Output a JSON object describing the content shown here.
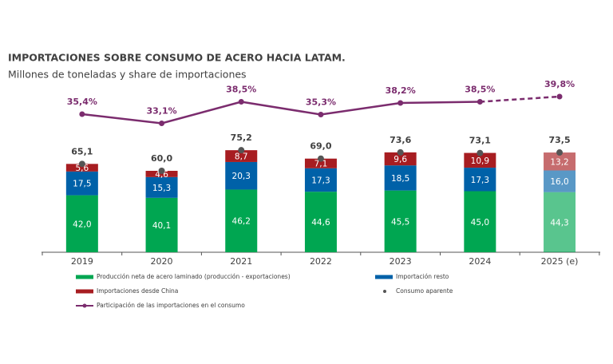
{
  "chart_data": {
    "type": "bar",
    "title": "IMPORTACIONES SOBRE CONSUMO DE ACERO HACIA LATAM.",
    "subtitle": "Millones de toneladas y share de importaciones",
    "categories": [
      "2019",
      "2020",
      "2021",
      "2022",
      "2023",
      "2024",
      "2025 (e)"
    ],
    "series": [
      {
        "name": "Producción neta de acero laminado (producción - exportaciones)",
        "color": "#00a651",
        "values": [
          42.0,
          40.1,
          46.2,
          44.6,
          45.5,
          45.0,
          44.3
        ],
        "value_labels": [
          "42,0",
          "40,1",
          "46,2",
          "44,6",
          "45,5",
          "45,0",
          "44,3"
        ]
      },
      {
        "name": "Importación resto",
        "color": "#0061a8",
        "values": [
          17.5,
          15.3,
          20.3,
          17.3,
          18.5,
          17.3,
          16.0
        ],
        "value_labels": [
          "17,5",
          "15,3",
          "20,3",
          "17,3",
          "18,5",
          "17,3",
          "16,0"
        ]
      },
      {
        "name": "Importaciones desde China",
        "color": "#a71d21",
        "values": [
          5.6,
          4.6,
          8.7,
          7.1,
          9.6,
          10.9,
          13.2
        ],
        "value_labels": [
          "5,6",
          "4,6",
          "8,7",
          "7,1",
          "9,6",
          "10,9",
          "13,2"
        ]
      },
      {
        "name": "Consumo aparente",
        "color": "#555555",
        "type": "scatter",
        "values": [
          65.1,
          60.0,
          75.2,
          69.0,
          73.6,
          73.1,
          73.5
        ],
        "value_labels": [
          "65,1",
          "60,0",
          "75,2",
          "69,0",
          "73,6",
          "73,1",
          "73,5"
        ]
      },
      {
        "name": "Participación de las importaciones en el consumo",
        "color": "#7b2c6e",
        "type": "line",
        "axis": "y2",
        "values": [
          35.4,
          33.1,
          38.5,
          35.3,
          38.2,
          38.5,
          39.8
        ],
        "value_labels": [
          "35,4%",
          "33,1%",
          "38,5%",
          "35,3%",
          "38,2%",
          "38,5%",
          "39,8%"
        ]
      }
    ]
  }
}
